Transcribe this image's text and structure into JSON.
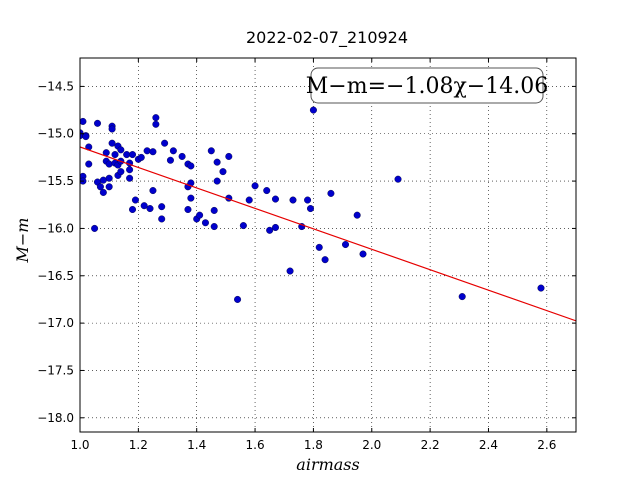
{
  "chart_data": {
    "type": "scatter",
    "title": "2022-02-07_210924",
    "xlabel": "airmass",
    "ylabel": "M−m",
    "xlim": [
      1.0,
      2.7
    ],
    "ylim": [
      -18.15,
      -14.2
    ],
    "x_ticks": [
      1.0,
      1.2,
      1.4,
      1.6,
      1.8,
      2.0,
      2.2,
      2.4,
      2.6
    ],
    "x_tick_labels": [
      "1.0",
      "1.2",
      "1.4",
      "1.6",
      "1.8",
      "2.0",
      "2.2",
      "2.4",
      "2.6"
    ],
    "y_ticks": [
      -14.5,
      -15.0,
      -15.5,
      -16.0,
      -16.5,
      -17.0,
      -17.5,
      -18.0
    ],
    "y_tick_labels": [
      "−14.5",
      "−15.0",
      "−15.5",
      "−16.0",
      "−16.5",
      "−17.0",
      "−17.5",
      "−18.0"
    ],
    "grid": true,
    "annotation": "M−m=−1.08χ−14.06",
    "fit": {
      "slope": -1.08,
      "intercept": -14.06,
      "color": "#e60000"
    },
    "point_color": "#0000cc",
    "points": [
      [
        1.0,
        -14.99
      ],
      [
        1.0,
        -15.02
      ],
      [
        1.01,
        -15.45
      ],
      [
        1.01,
        -15.5
      ],
      [
        1.01,
        -14.87
      ],
      [
        1.02,
        -15.02
      ],
      [
        1.02,
        -15.03
      ],
      [
        1.03,
        -15.14
      ],
      [
        1.03,
        -15.32
      ],
      [
        1.05,
        -16.0
      ],
      [
        1.06,
        -14.89
      ],
      [
        1.06,
        -15.51
      ],
      [
        1.07,
        -15.56
      ],
      [
        1.08,
        -15.62
      ],
      [
        1.08,
        -15.49
      ],
      [
        1.09,
        -15.2
      ],
      [
        1.09,
        -15.29
      ],
      [
        1.1,
        -15.32
      ],
      [
        1.1,
        -15.47
      ],
      [
        1.1,
        -15.56
      ],
      [
        1.11,
        -14.92
      ],
      [
        1.11,
        -14.95
      ],
      [
        1.11,
        -15.1
      ],
      [
        1.12,
        -15.31
      ],
      [
        1.12,
        -15.22
      ],
      [
        1.13,
        -15.13
      ],
      [
        1.13,
        -15.33
      ],
      [
        1.13,
        -15.44
      ],
      [
        1.14,
        -15.17
      ],
      [
        1.14,
        -15.29
      ],
      [
        1.14,
        -15.4
      ],
      [
        1.16,
        -15.22
      ],
      [
        1.17,
        -15.31
      ],
      [
        1.17,
        -15.38
      ],
      [
        1.17,
        -15.47
      ],
      [
        1.18,
        -15.22
      ],
      [
        1.18,
        -15.8
      ],
      [
        1.19,
        -15.7
      ],
      [
        1.2,
        -15.27
      ],
      [
        1.21,
        -15.25
      ],
      [
        1.22,
        -15.76
      ],
      [
        1.23,
        -15.18
      ],
      [
        1.24,
        -15.79
      ],
      [
        1.25,
        -15.6
      ],
      [
        1.25,
        -15.19
      ],
      [
        1.26,
        -14.83
      ],
      [
        1.26,
        -14.9
      ],
      [
        1.28,
        -15.9
      ],
      [
        1.28,
        -15.77
      ],
      [
        1.29,
        -15.1
      ],
      [
        1.31,
        -15.28
      ],
      [
        1.32,
        -15.18
      ],
      [
        1.35,
        -15.24
      ],
      [
        1.37,
        -15.32
      ],
      [
        1.37,
        -15.56
      ],
      [
        1.37,
        -15.8
      ],
      [
        1.38,
        -15.34
      ],
      [
        1.38,
        -15.52
      ],
      [
        1.38,
        -15.68
      ],
      [
        1.4,
        -15.9
      ],
      [
        1.41,
        -15.86
      ],
      [
        1.43,
        -15.94
      ],
      [
        1.45,
        -15.18
      ],
      [
        1.46,
        -15.98
      ],
      [
        1.46,
        -15.81
      ],
      [
        1.47,
        -15.3
      ],
      [
        1.47,
        -15.5
      ],
      [
        1.49,
        -15.4
      ],
      [
        1.51,
        -15.24
      ],
      [
        1.51,
        -15.68
      ],
      [
        1.54,
        -16.75
      ],
      [
        1.56,
        -15.97
      ],
      [
        1.58,
        -15.7
      ],
      [
        1.6,
        -15.55
      ],
      [
        1.64,
        -15.6
      ],
      [
        1.65,
        -16.02
      ],
      [
        1.67,
        -15.69
      ],
      [
        1.67,
        -15.99
      ],
      [
        1.72,
        -16.45
      ],
      [
        1.73,
        -15.7
      ],
      [
        1.76,
        -15.98
      ],
      [
        1.78,
        -15.7
      ],
      [
        1.79,
        -15.79
      ],
      [
        1.8,
        -14.75
      ],
      [
        1.82,
        -16.2
      ],
      [
        1.84,
        -16.33
      ],
      [
        1.86,
        -15.63
      ],
      [
        1.91,
        -16.17
      ],
      [
        1.95,
        -15.86
      ],
      [
        1.97,
        -16.27
      ],
      [
        2.09,
        -15.48
      ],
      [
        2.31,
        -16.72
      ],
      [
        2.58,
        -16.63
      ]
    ]
  }
}
